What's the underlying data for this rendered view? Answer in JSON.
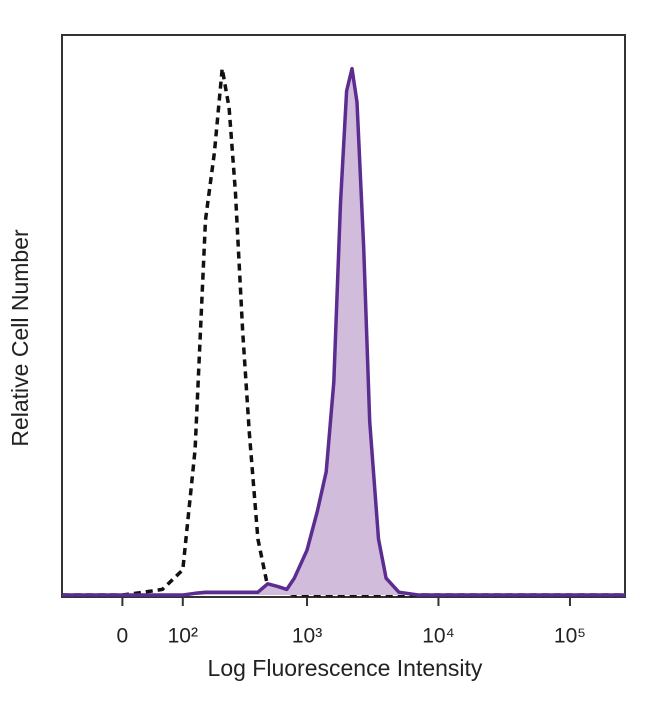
{
  "chart_data": {
    "type": "histogram",
    "xlabel": "Log Fluorescence Intensity",
    "ylabel": "Relative Cell Number",
    "xscale": "biexponential",
    "xlim": [
      -100,
      262144
    ],
    "xticks": [
      0,
      {
        "value": 100,
        "label": "10²"
      },
      {
        "value": 1000,
        "label": "10³"
      },
      {
        "value": 10000,
        "label": "10⁴"
      },
      {
        "value": 100000,
        "label": "10⁵"
      }
    ],
    "ylim": [
      0,
      100
    ],
    "x": [
      -100,
      -50,
      0,
      30,
      60,
      100,
      130,
      160,
      190,
      220,
      250,
      280,
      320,
      360,
      420,
      500,
      600,
      700,
      800,
      1000,
      1200,
      1400,
      1600,
      1800,
      2000,
      2200,
      2400,
      2700,
      3000,
      3500,
      4000,
      5000,
      7000,
      10000,
      30000,
      100000,
      262144
    ],
    "series": [
      {
        "color": "#111111",
        "dashed": true,
        "filled": false,
        "values": [
          0,
          0,
          0,
          0.5,
          1,
          4.5,
          26,
          67,
          79,
          94,
          87,
          72,
          47,
          29,
          10,
          1.5,
          1,
          0.5,
          0,
          0,
          0,
          0,
          0,
          0,
          0,
          0,
          0,
          0,
          0,
          0,
          0,
          0,
          0,
          0,
          0,
          0,
          0
        ]
      },
      {
        "color": "#5b2d91",
        "fill": "#d2bcdc",
        "dashed": false,
        "filled": true,
        "values": [
          0,
          0,
          0,
          0,
          0,
          0,
          0.3,
          0.5,
          0.5,
          0.5,
          0.5,
          0.5,
          0.5,
          0.5,
          0.5,
          2,
          1.5,
          1,
          3,
          8,
          15,
          22,
          38,
          70,
          90,
          94,
          88,
          62,
          31,
          10,
          3,
          0.5,
          0,
          0,
          0,
          0,
          0
        ]
      }
    ]
  }
}
